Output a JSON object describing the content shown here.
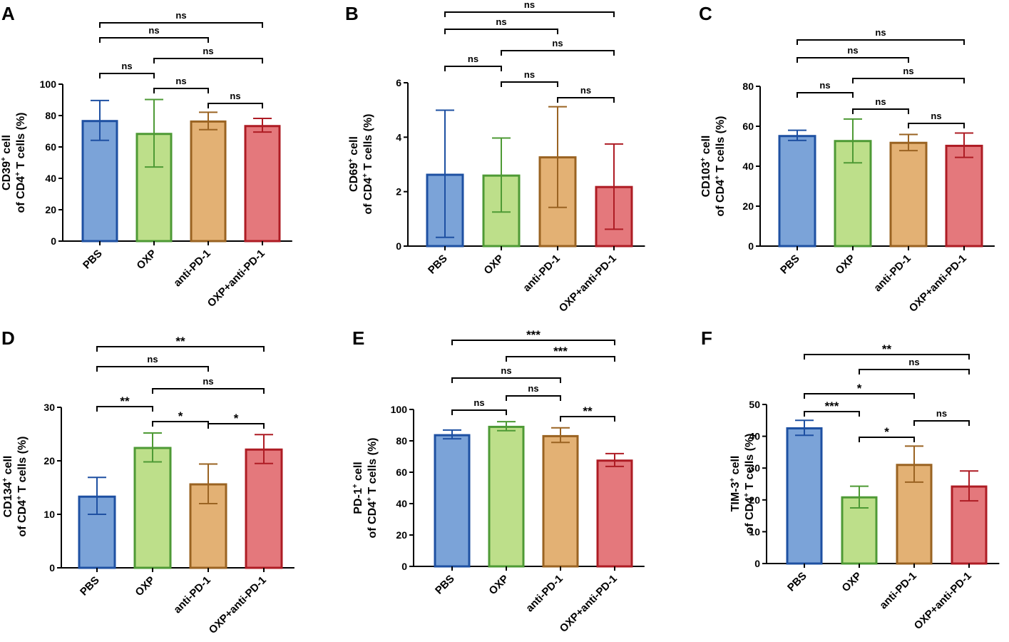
{
  "colors": {
    "fills": [
      "#7ba3d8",
      "#bddf8a",
      "#e3b174",
      "#e4787c"
    ],
    "edges": [
      "#1e50a2",
      "#4e9a35",
      "#9a6322",
      "#ae1c24"
    ]
  },
  "chart_data": [
    {
      "id": "A",
      "type": "bar",
      "letter": "A",
      "ylabel": [
        "CD39",
        "+",
        " cell",
        "of CD4",
        "+",
        " T cells (%)"
      ],
      "categories": [
        "PBS",
        "OXP",
        "anti-PD-1",
        "OXP+anti-PD-1"
      ],
      "values": [
        76.5,
        68.3,
        76.2,
        73.3
      ],
      "errors_upper": [
        89.6,
        90.2,
        82.1,
        78.2
      ],
      "errors_lower": [
        64.2,
        47.2,
        71.0,
        69.5
      ],
      "ylim": [
        0,
        100
      ],
      "yticks": [
        "0",
        "20",
        "40",
        "60",
        "80",
        "100"
      ],
      "comparisons": [
        {
          "from": 0,
          "to": 3,
          "label": "ns"
        },
        {
          "from": 0,
          "to": 2,
          "label": "ns"
        },
        {
          "from": 1,
          "to": 3,
          "label": "ns"
        },
        {
          "from": 0,
          "to": 1,
          "label": "ns"
        },
        {
          "from": 1,
          "to": 2,
          "label": "ns"
        },
        {
          "from": 2,
          "to": 3,
          "label": "ns"
        }
      ]
    },
    {
      "id": "B",
      "type": "bar",
      "letter": "B",
      "ylabel": [
        "CD69",
        "+",
        " cell",
        "of CD4",
        "+",
        " T cells (%)"
      ],
      "categories": [
        "PBS",
        "OXP",
        "anti-PD-1",
        "OXP+anti-PD-1"
      ],
      "values": [
        2.62,
        2.59,
        3.26,
        2.17
      ],
      "errors_upper": [
        4.99,
        3.97,
        5.12,
        3.75
      ],
      "errors_lower": [
        0.32,
        1.25,
        1.42,
        0.62
      ],
      "ylim": [
        0,
        6
      ],
      "yticks": [
        "0",
        "2",
        "4",
        "6"
      ],
      "comparisons": [
        {
          "from": 0,
          "to": 3,
          "label": "ns"
        },
        {
          "from": 0,
          "to": 2,
          "label": "ns"
        },
        {
          "from": 1,
          "to": 3,
          "label": "ns"
        },
        {
          "from": 0,
          "to": 1,
          "label": "ns"
        },
        {
          "from": 1,
          "to": 2,
          "label": "ns"
        },
        {
          "from": 2,
          "to": 3,
          "label": "ns"
        }
      ]
    },
    {
      "id": "C",
      "type": "bar",
      "letter": "C",
      "ylabel": [
        "CD103",
        "+",
        " cell",
        "of CD4",
        "+",
        " T cells (%)"
      ],
      "categories": [
        "PBS",
        "OXP",
        "anti-PD-1",
        "OXP+anti-PD-1"
      ],
      "values": [
        55.1,
        52.6,
        51.7,
        50.2
      ],
      "errors_upper": [
        58.0,
        63.6,
        55.9,
        56.6
      ],
      "errors_lower": [
        52.9,
        41.7,
        47.8,
        44.4
      ],
      "ylim": [
        0,
        80
      ],
      "yticks": [
        "0",
        "20",
        "40",
        "60",
        "80"
      ],
      "comparisons": [
        {
          "from": 0,
          "to": 3,
          "label": "ns"
        },
        {
          "from": 0,
          "to": 2,
          "label": "ns"
        },
        {
          "from": 1,
          "to": 3,
          "label": "ns"
        },
        {
          "from": 0,
          "to": 1,
          "label": "ns"
        },
        {
          "from": 1,
          "to": 2,
          "label": "ns"
        },
        {
          "from": 2,
          "to": 3,
          "label": "ns"
        }
      ]
    },
    {
      "id": "D",
      "type": "bar",
      "letter": "D",
      "ylabel": [
        "CD134",
        "+",
        " cell",
        "of CD4",
        "+",
        " T cells (%)"
      ],
      "categories": [
        "PBS",
        "OXP",
        "anti-PD-1",
        "OXP+anti-PD-1"
      ],
      "values": [
        13.3,
        22.4,
        15.6,
        22.1
      ],
      "errors_upper": [
        16.9,
        25.2,
        19.4,
        24.9
      ],
      "errors_lower": [
        10.0,
        19.8,
        12.0,
        19.5
      ],
      "ylim": [
        0,
        30
      ],
      "yticks": [
        "0",
        "10",
        "20",
        "30"
      ],
      "comparisons": [
        {
          "from": 0,
          "to": 3,
          "label": "**"
        },
        {
          "from": 0,
          "to": 2,
          "label": "ns"
        },
        {
          "from": 1,
          "to": 3,
          "label": "ns"
        },
        {
          "from": 0,
          "to": 1,
          "label": "**"
        },
        {
          "from": 1,
          "to": 2,
          "label": "*"
        },
        {
          "from": 2,
          "to": 3,
          "label": "*"
        }
      ]
    },
    {
      "id": "E",
      "type": "bar",
      "letter": "E",
      "ylabel": [
        "PD-1",
        "+",
        " cell",
        "of CD4",
        "+",
        " T cells (%)"
      ],
      "categories": [
        "PBS",
        "OXP",
        "anti-PD-1",
        "OXP+anti-PD-1"
      ],
      "values": [
        83.6,
        88.9,
        83.0,
        67.4
      ],
      "errors_upper": [
        86.9,
        92.2,
        88.3,
        71.9
      ],
      "errors_lower": [
        81.3,
        86.5,
        79.0,
        63.7
      ],
      "ylim": [
        0,
        100
      ],
      "yticks": [
        "0",
        "20",
        "40",
        "60",
        "80",
        "100"
      ],
      "comparisons": [
        {
          "from": 0,
          "to": 3,
          "label": "***"
        },
        {
          "from": 1,
          "to": 3,
          "label": "***"
        },
        {
          "from": 0,
          "to": 2,
          "label": "ns"
        },
        {
          "from": 1,
          "to": 2,
          "label": "ns"
        },
        {
          "from": 0,
          "to": 1,
          "label": "ns"
        },
        {
          "from": 2,
          "to": 3,
          "label": "**"
        }
      ]
    },
    {
      "id": "F",
      "type": "bar",
      "letter": "F",
      "ylabel": [
        "TIM-3",
        "+",
        " cell",
        "of CD4",
        "+",
        " T cells (%)"
      ],
      "categories": [
        "PBS",
        "OXP",
        "anti-PD-1",
        "OXP+anti-PD-1"
      ],
      "values": [
        42.5,
        20.8,
        31.0,
        24.2
      ],
      "errors_upper": [
        45.0,
        24.3,
        36.9,
        29.1
      ],
      "errors_lower": [
        40.3,
        17.5,
        25.6,
        19.7
      ],
      "ylim": [
        0,
        50
      ],
      "yticks": [
        "0",
        "10",
        "20",
        "30",
        "40",
        "50"
      ],
      "comparisons": [
        {
          "from": 0,
          "to": 3,
          "label": "**"
        },
        {
          "from": 1,
          "to": 3,
          "label": "ns"
        },
        {
          "from": 0,
          "to": 2,
          "label": "*"
        },
        {
          "from": 0,
          "to": 1,
          "label": "***"
        },
        {
          "from": 2,
          "to": 3,
          "label": "ns"
        },
        {
          "from": 1,
          "to": 2,
          "label": "*"
        }
      ]
    }
  ]
}
